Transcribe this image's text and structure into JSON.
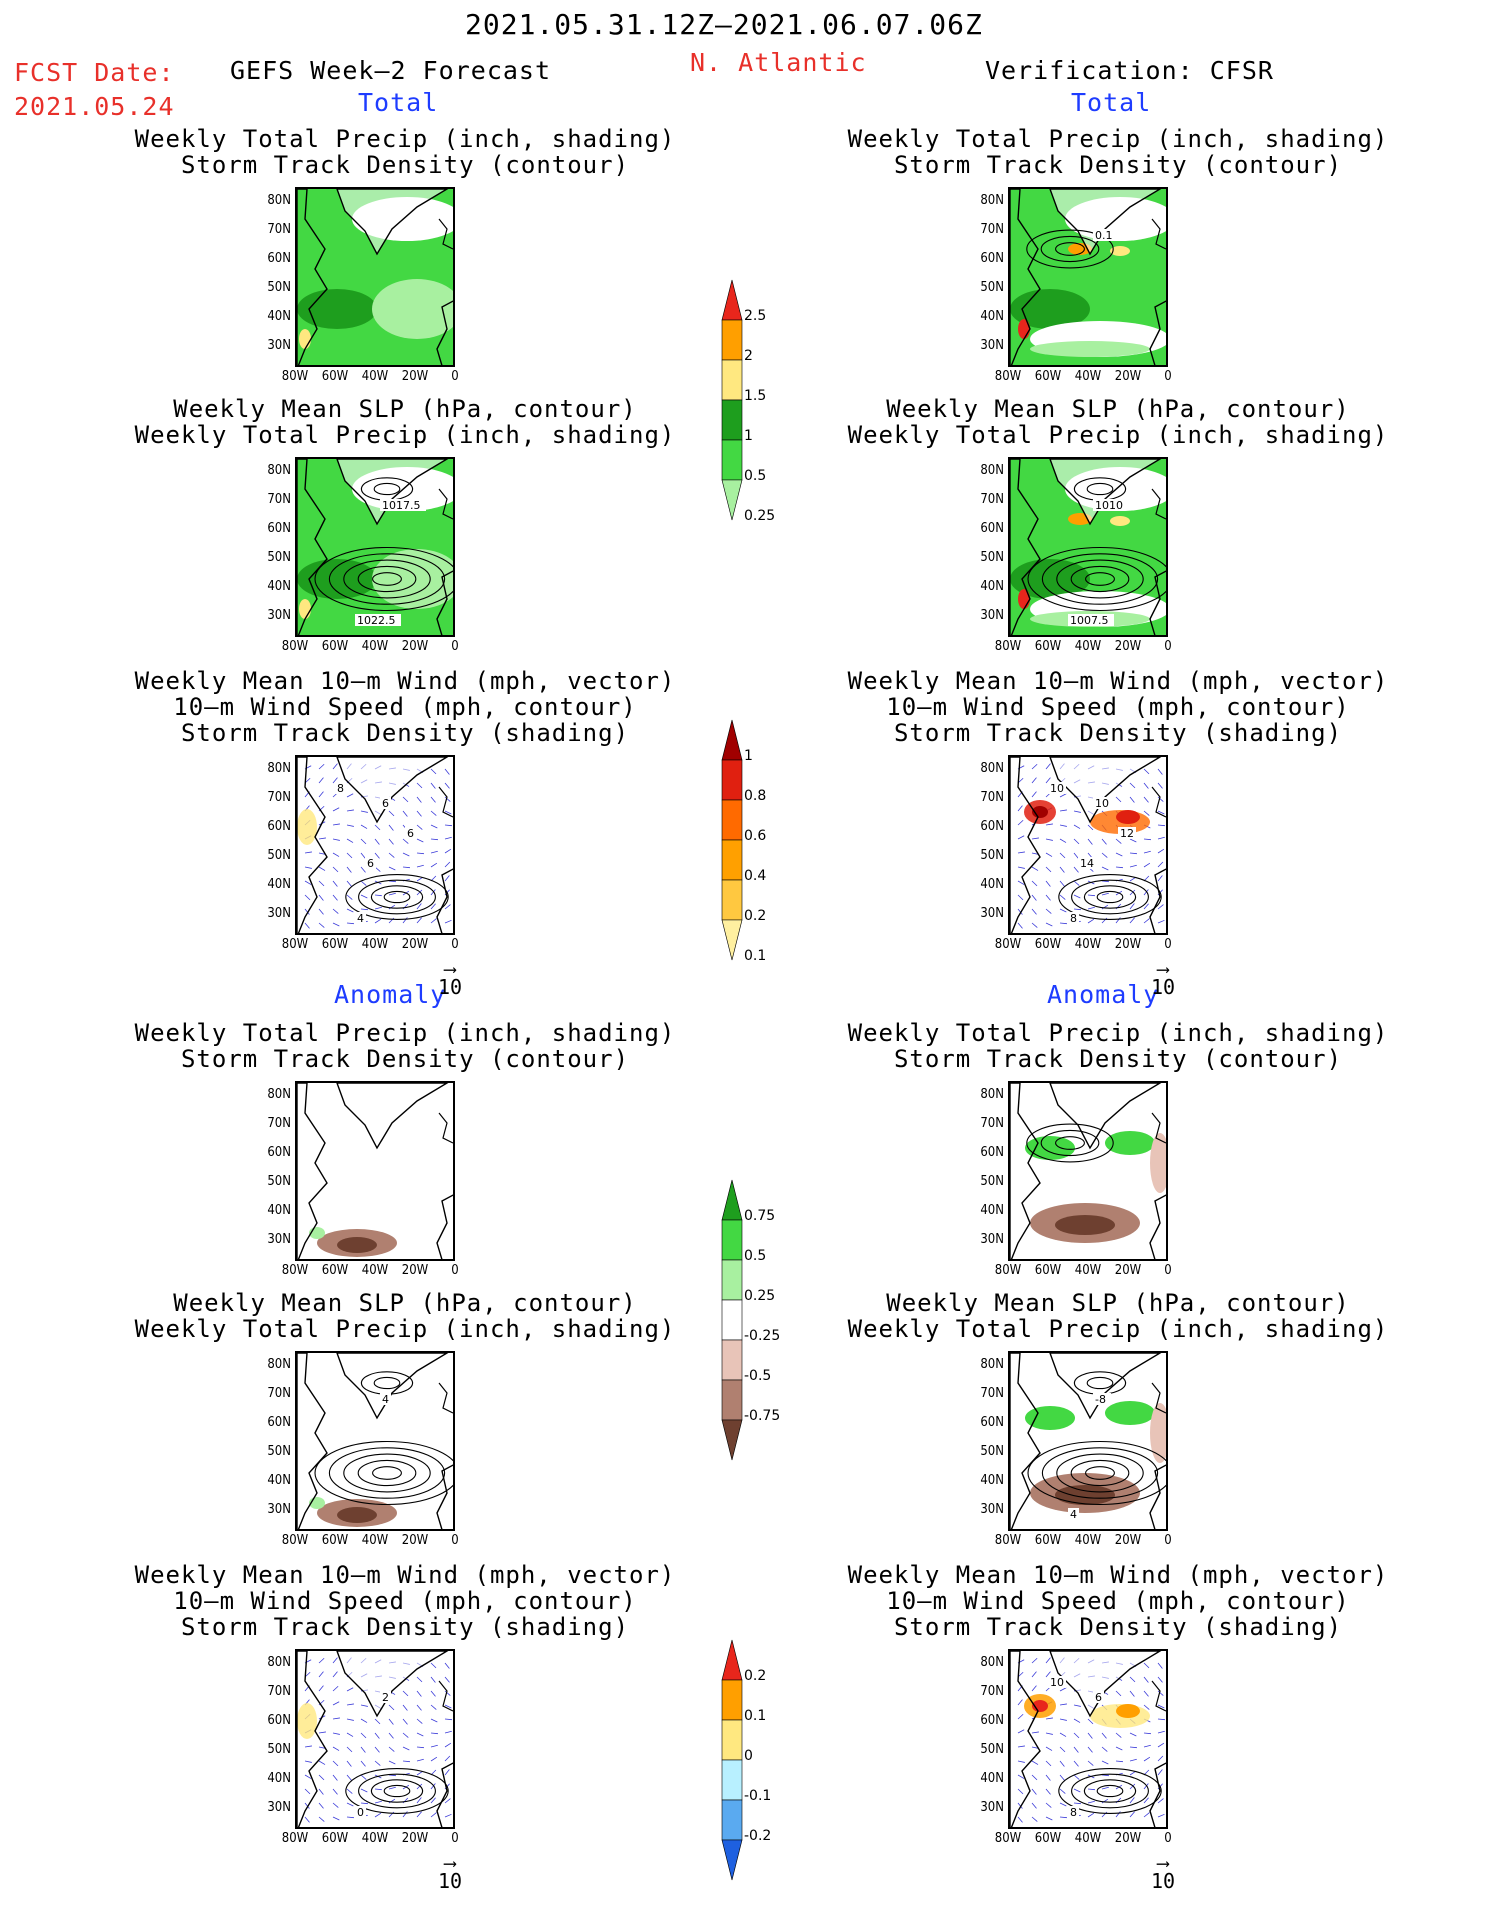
{
  "header": {
    "date_range": "2021.05.31.12Z–2021.06.07.06Z",
    "fcst_date_label": "FCST Date:",
    "fcst_date_value": "2021.05.24",
    "left_title": "GEFS Week–2 Forecast",
    "region": "N. Atlantic",
    "right_title": "Verification: CFSR"
  },
  "sections": {
    "total": "Total",
    "anomaly": "Anomaly"
  },
  "panel_titles": {
    "precip_storm": [
      "Weekly Total Precip (inch, shading)",
      "Storm Track Density (contour)"
    ],
    "slp_precip": [
      "Weekly Mean SLP (hPa, contour)",
      "Weekly Total Precip (inch, shading)"
    ],
    "wind": [
      "Weekly Mean 10–m Wind (mph, vector)",
      "10–m Wind Speed (mph, contour)",
      "Storm Track Density (shading)"
    ]
  },
  "axes": {
    "lat_labels": [
      "80N",
      "70N",
      "60N",
      "50N",
      "40N",
      "30N"
    ],
    "lon_labels": [
      "80W",
      "60W",
      "40W",
      "20W",
      "0"
    ]
  },
  "contour_labels": {
    "gefs_total_slp": [
      "1017.5",
      "1022.5"
    ],
    "cfsr_total_storm": [
      "0.1"
    ],
    "cfsr_total_slp": [
      "1010",
      "1007.5"
    ],
    "gefs_total_wind": [
      "6",
      "4",
      "8",
      "6",
      "6"
    ],
    "cfsr_total_wind": [
      "10",
      "8",
      "10",
      "12",
      "14"
    ],
    "gefs_anom_slp": [
      "4"
    ],
    "cfsr_anom_slp": [
      "-8",
      "4"
    ],
    "gefs_anom_wind": [
      "2",
      "0"
    ],
    "cfsr_anom_wind": [
      "6",
      "8",
      "10"
    ]
  },
  "vector_ref": "10",
  "colorbars": {
    "total_precip": {
      "labels": [
        "2.5",
        "2",
        "1.5",
        "1",
        "0.5",
        "0.25"
      ],
      "colors": [
        "#e8261c",
        "#ff9f00",
        "#ffe880",
        "#1e9e1e",
        "#43d843",
        "#a8f0a0"
      ]
    },
    "total_storm": {
      "labels": [
        "1",
        "0.8",
        "0.6",
        "0.4",
        "0.2",
        "0.1"
      ],
      "colors": [
        "#a00000",
        "#e02010",
        "#ff6a00",
        "#ffa000",
        "#ffc840",
        "#fff0a0"
      ]
    },
    "anom_precip": {
      "labels": [
        "0.75",
        "0.5",
        "0.25",
        "-0.25",
        "-0.5",
        "-0.75"
      ],
      "colors": [
        "#1e9e1e",
        "#43d843",
        "#a8f0a0",
        "#ffffff",
        "#e8c4b8",
        "#b08070",
        "#6e4030"
      ]
    },
    "anom_storm": {
      "labels": [
        "0.2",
        "0.1",
        "0",
        "-0.1",
        "-0.2"
      ],
      "colors": [
        "#e8261c",
        "#ff9f00",
        "#ffe880",
        "#b8f0ff",
        "#5aaaf0",
        "#1e60e0"
      ]
    }
  }
}
